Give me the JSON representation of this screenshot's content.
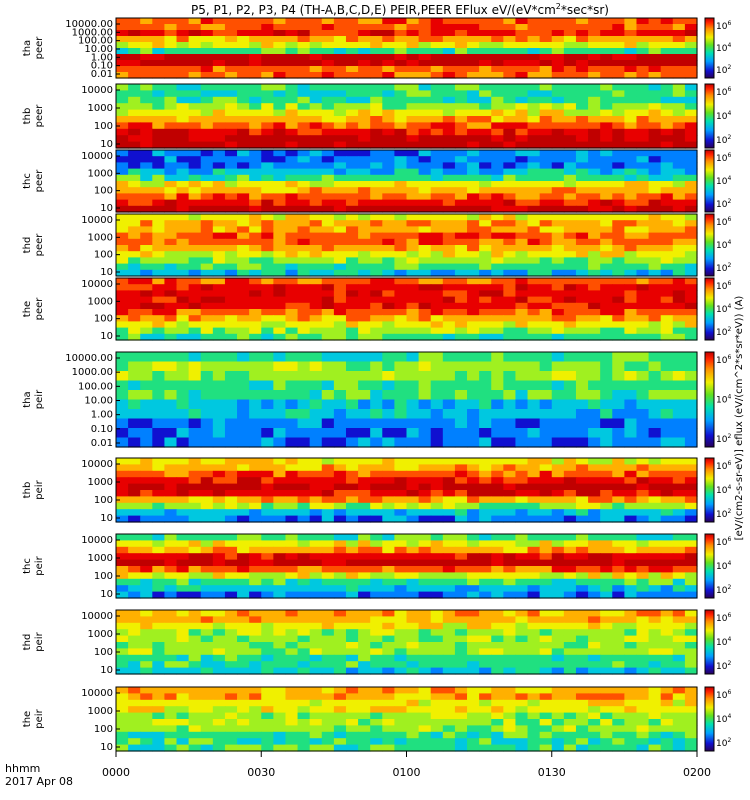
{
  "chart_data": {
    "type": "heatmap",
    "title": "P5, P1, P2, P3, P4 (TH-A,B,C,D,E) PEIR,PEER EFlux eV/(eV*cm",
    "title_sup": "2",
    "title_end": "*sec*sr)",
    "x_label_line1": "hhmm",
    "x_label_line2": "2017 Apr 08",
    "x_ticks": [
      "0000",
      "0030",
      "0100",
      "0130",
      "0200"
    ],
    "x_range": [
      "0000",
      "0200"
    ],
    "colorbar_label": "[eV/(cm2-s-sr-eV)] eflux (eV/(cm^2*s*sr*eV)) (A)",
    "colorbar_ticks": [
      "10",
      "4",
      "6"
    ],
    "colorbar_ticks_exp": [
      "2",
      "4",
      "6"
    ],
    "panels": [
      {
        "probe": "tha",
        "species": "peer",
        "yticks": [
          "10000.00",
          "1000.00",
          "100.00",
          "10.00",
          "1.00",
          "0.10",
          "0.01"
        ]
      },
      {
        "probe": "thb",
        "species": "peer",
        "yticks": [
          "10000",
          "1000",
          "100",
          "10"
        ]
      },
      {
        "probe": "thc",
        "species": "peer",
        "yticks": [
          "10000",
          "1000",
          "100",
          "10"
        ]
      },
      {
        "probe": "thd",
        "species": "peer",
        "yticks": [
          "10000",
          "1000",
          "100",
          "10"
        ]
      },
      {
        "probe": "the",
        "species": "peer",
        "yticks": [
          "10000",
          "1000",
          "100",
          "10"
        ]
      },
      {
        "probe": "tha",
        "species": "peir",
        "yticks": [
          "10000.00",
          "1000.00",
          "100.00",
          "10.00",
          "1.00",
          "0.10",
          "0.01"
        ]
      },
      {
        "probe": "thb",
        "species": "peir",
        "yticks": [
          "10000",
          "1000",
          "100",
          "10"
        ]
      },
      {
        "probe": "thc",
        "species": "peir",
        "yticks": [
          "10000",
          "1000",
          "100",
          "10"
        ]
      },
      {
        "probe": "thd",
        "species": "peir",
        "yticks": [
          "10000",
          "1000",
          "100",
          "10"
        ]
      },
      {
        "probe": "the",
        "species": "peir",
        "yticks": [
          "10000",
          "1000",
          "100",
          "10"
        ]
      }
    ]
  }
}
